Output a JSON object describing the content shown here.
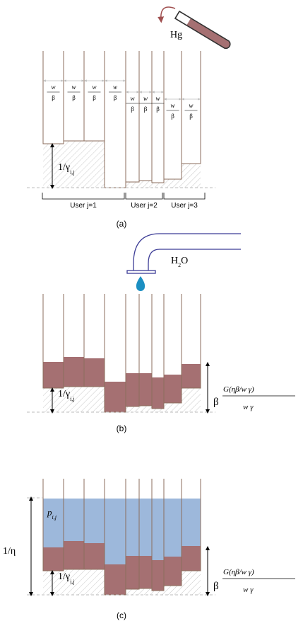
{
  "panels": {
    "a": {
      "caption": "(a)",
      "mercury_label": "Hg",
      "floor_label": "1/γ",
      "floor_label_sub": "i,j",
      "frac_num": "w",
      "frac_den": "β",
      "user_groups": [
        "User j=1",
        "User j=2",
        "User j=3"
      ]
    },
    "b": {
      "caption": "(b)",
      "water_label": "H",
      "water_sub": "2",
      "water_tail": "O",
      "floor_label": "1/γ",
      "floor_label_sub": "i,j",
      "beta_label": "β",
      "formula_num": "G(ηβ/w γ)",
      "formula_den": "w γ"
    },
    "c": {
      "caption": "(c)",
      "level_label": "1/η",
      "power_label": "p",
      "power_sub": "i,j",
      "floor_label": "1/γ",
      "floor_label_sub": "i,j",
      "beta_label": "β",
      "formula_num": "G(ηβ/w γ)",
      "formula_den": "w γ"
    }
  },
  "colors": {
    "mercury": "#a57072",
    "water": "#9db8db",
    "wall": "#8b6e5c",
    "pipe": "#3c3c96",
    "drop": "#1b8fc2",
    "hatch": "#c8c8c8",
    "arrow": "#000000"
  },
  "icons": {
    "tube": "test-tube-icon",
    "curved_arrow": "curved-arrow-icon",
    "pipe": "pipe-icon",
    "drop": "water-drop-icon"
  }
}
